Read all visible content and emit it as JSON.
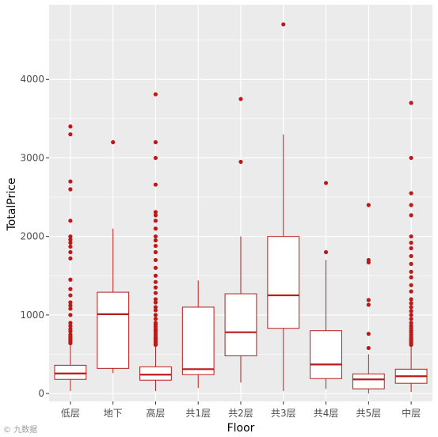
{
  "chart_data": {
    "type": "boxplot",
    "xlabel": "Floor",
    "ylabel": "TotalPrice",
    "categories": [
      "低层",
      "地下",
      "高层",
      "共1层",
      "共2层",
      "共3层",
      "共4层",
      "共5层",
      "中层"
    ],
    "y_ticks": [
      0,
      1000,
      2000,
      3000,
      4000
    ],
    "ylim": [
      -100,
      4950
    ],
    "grid": true,
    "colors": {
      "panel": "#ebebeb",
      "grid": "#ffffff",
      "box": "#bb1a1a",
      "point": "#bb1a1a"
    },
    "boxes": [
      {
        "category": "低层",
        "lower_whisker": 30,
        "q1": 180,
        "median": 255,
        "q3": 360,
        "upper_whisker": 630,
        "outliers": [
          640,
          660,
          680,
          700,
          720,
          750,
          790,
          820,
          860,
          900,
          1000,
          1080,
          1120,
          1160,
          1250,
          1330,
          1450,
          1720,
          1800,
          1870,
          1920,
          1960,
          2000,
          2200,
          2600,
          2700,
          3300,
          3400
        ]
      },
      {
        "category": "地下",
        "lower_whisker": 260,
        "q1": 320,
        "median": 1010,
        "q3": 1290,
        "upper_whisker": 2100,
        "outliers": [
          3200
        ]
      },
      {
        "category": "高层",
        "lower_whisker": 30,
        "q1": 170,
        "median": 240,
        "q3": 340,
        "upper_whisker": 600,
        "outliers": [
          620,
          640,
          660,
          680,
          700,
          720,
          750,
          780,
          800,
          820,
          850,
          880,
          900,
          950,
          1000,
          1060,
          1100,
          1160,
          1200,
          1280,
          1350,
          1420,
          1500,
          1600,
          1700,
          1800,
          1880,
          1950,
          2000,
          2100,
          2200,
          2270,
          2310,
          2660,
          3000,
          3200,
          3810
        ]
      },
      {
        "category": "共1层",
        "lower_whisker": 70,
        "q1": 240,
        "median": 310,
        "q3": 1100,
        "upper_whisker": 1440,
        "outliers": []
      },
      {
        "category": "共2层",
        "lower_whisker": 140,
        "q1": 480,
        "median": 780,
        "q3": 1270,
        "upper_whisker": 2000,
        "outliers": [
          2950,
          3750
        ]
      },
      {
        "category": "共3层",
        "lower_whisker": 30,
        "q1": 830,
        "median": 1250,
        "q3": 2000,
        "upper_whisker": 3300,
        "outliers": [
          4700
        ]
      },
      {
        "category": "共4层",
        "lower_whisker": 60,
        "q1": 190,
        "median": 370,
        "q3": 800,
        "upper_whisker": 1700,
        "outliers": [
          1800,
          2680
        ]
      },
      {
        "category": "共5层",
        "lower_whisker": 0,
        "q1": 60,
        "median": 180,
        "q3": 250,
        "upper_whisker": 500,
        "outliers": [
          580,
          760,
          1130,
          1190,
          1670,
          1700,
          2400
        ]
      },
      {
        "category": "中层",
        "lower_whisker": 20,
        "q1": 130,
        "median": 220,
        "q3": 310,
        "upper_whisker": 600,
        "outliers": [
          620,
          640,
          660,
          680,
          700,
          720,
          750,
          780,
          800,
          830,
          860,
          900,
          950,
          1000,
          1050,
          1100,
          1150,
          1200,
          1300,
          1380,
          1480,
          1550,
          1650,
          1750,
          1850,
          1920,
          2000,
          2270,
          2400,
          2550,
          3000,
          3700
        ]
      }
    ]
  },
  "watermark": "© 九数据"
}
